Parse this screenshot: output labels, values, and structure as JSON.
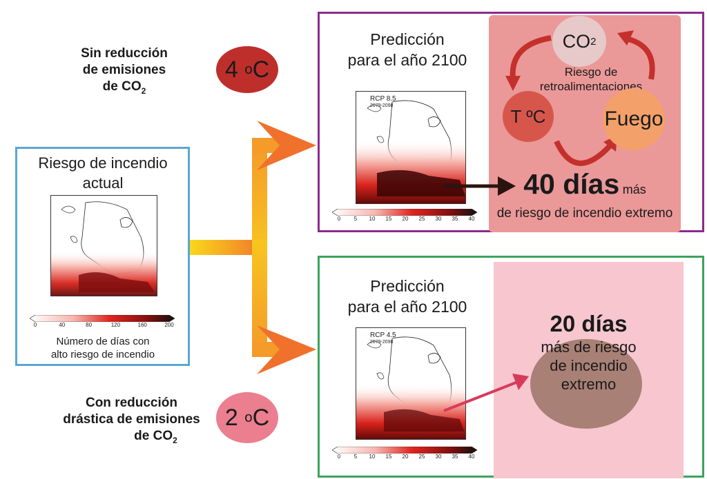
{
  "current_panel": {
    "title": "Riesgo de incendio actual",
    "colorbar_ticks": [
      "0",
      "40",
      "80",
      "120",
      "160",
      "200"
    ],
    "caption_line1": "Número de días con",
    "caption_line2": "alto riesgo de incendio"
  },
  "scenario_high": {
    "label_line1": "Sin reducción",
    "label_line2": "de emisiones",
    "label_line3_prefix": "de CO",
    "label_line3_sub": "2",
    "temperature_value": "4",
    "temperature_unit": "C",
    "temperature_symbol": "o",
    "color": "#be2f2c",
    "prediction_line1": "Predicción",
    "prediction_line2": "para el año 2100",
    "map_label": "RCP 8.5",
    "map_period": "2079-2098",
    "colorbar_ticks": [
      "0",
      "5",
      "10",
      "15",
      "20",
      "25",
      "30",
      "35",
      "40"
    ],
    "feedback": {
      "co2_prefix": "CO",
      "co2_sub": "2",
      "risk_line1": "Riesgo de",
      "risk_line2": "retroalimentaciones",
      "temp_label": "T ºC",
      "fire_label": "Fuego"
    },
    "result_value": "40 días",
    "result_suffix": "más",
    "result_line2": "de riesgo de incendio extremo"
  },
  "scenario_low": {
    "label_line1": "Con reducción",
    "label_line2": "drástica de emisiones",
    "label_line3_prefix": "de CO",
    "label_line3_sub": "2",
    "temperature_value": "2",
    "temperature_unit": "C",
    "temperature_symbol": "o",
    "color": "#eb7e8f",
    "prediction_line1": "Predicción",
    "prediction_line2": "para el año 2100",
    "map_label": "RCP 4.5",
    "map_period": "2079-2098",
    "colorbar_ticks": [
      "0",
      "5",
      "10",
      "15",
      "20",
      "25",
      "30",
      "35",
      "40"
    ],
    "result_value": "20 días",
    "result_line1": "más de riesgo",
    "result_line2": "de incendio",
    "result_line3": "extremo"
  },
  "colors": {
    "current_border": "#5aa7d0",
    "high_border": "#8c2a8c",
    "low_border": "#3aa55a",
    "arrow_start": "#f9d71c",
    "arrow_end": "#f0712c",
    "high_zone": "#eb9898",
    "low_zone": "#f7c6cf"
  }
}
